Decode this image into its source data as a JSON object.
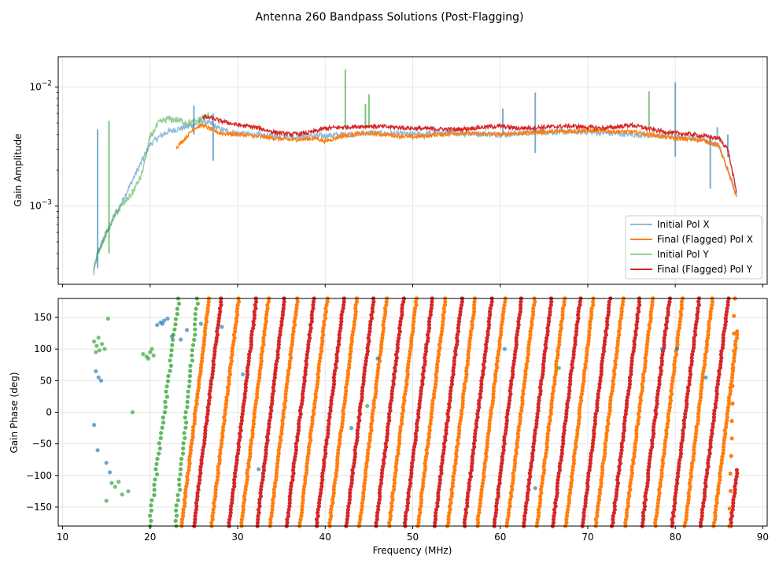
{
  "figure": {
    "title": "Antenna 260 Bandpass Solutions (Post-Flagging)"
  },
  "chart_data": [
    {
      "type": "line",
      "ylabel": "Gain Amplitude",
      "xlabel": "",
      "xlim": [
        9.5,
        90.5
      ],
      "ylim": [
        0.00022,
        0.018
      ],
      "yscale": "log",
      "yticks": [
        {
          "value": 0.001,
          "base": "10",
          "exp": "−3"
        },
        {
          "value": 0.01,
          "base": "10",
          "exp": "−2"
        }
      ],
      "xticks": [
        10,
        20,
        30,
        40,
        50,
        60,
        70,
        80,
        90
      ],
      "grid": true,
      "legend_position": "lower-right",
      "series": [
        {
          "name": "Initial Pol X",
          "color": "#1f77b4",
          "opacity": 0.5,
          "x": [
            13.5,
            14.0,
            15.5,
            20.0,
            21.0,
            22.0,
            23.0,
            24.0,
            25.0,
            26.0,
            27.0,
            28.0,
            30.0,
            33.0,
            36.0,
            40.0,
            45.0,
            50.0,
            55.0,
            60.0,
            65.0,
            70.0,
            75.0,
            80.0,
            83.0,
            85.0,
            87.0
          ],
          "y": [
            0.00028,
            0.0004,
            0.0007,
            0.0033,
            0.0038,
            0.0042,
            0.0044,
            0.0046,
            0.0048,
            0.0052,
            0.0049,
            0.0044,
            0.0041,
            0.0039,
            0.0038,
            0.0039,
            0.0041,
            0.004,
            0.0041,
            0.004,
            0.0042,
            0.0042,
            0.004,
            0.0038,
            0.0037,
            0.0032,
            0.00125
          ]
        },
        {
          "name": "Final (Flagged) Pol X",
          "color": "#ff7f0e",
          "opacity": 1,
          "x": [
            23.0,
            24.0,
            25.0,
            26.0,
            27.0,
            28.0,
            30.0,
            33.0,
            36.0,
            39.0,
            40.0,
            42.0,
            45.0,
            50.0,
            55.0,
            60.0,
            65.0,
            70.0,
            75.0,
            80.0,
            83.0,
            85.0,
            87.0
          ],
          "y": [
            0.0031,
            0.0037,
            0.0045,
            0.0048,
            0.0044,
            0.0041,
            0.004,
            0.0038,
            0.0036,
            0.0037,
            0.0035,
            0.0039,
            0.0041,
            0.0038,
            0.0041,
            0.004,
            0.0042,
            0.0043,
            0.0042,
            0.0037,
            0.0036,
            0.0032,
            0.0012
          ]
        },
        {
          "name": "Initial Pol Y",
          "color": "#2ca02c",
          "opacity": 0.5,
          "x": [
            13.5,
            14.0,
            15.0,
            16.0,
            18.0,
            19.0,
            20.0,
            21.0,
            22.0,
            23.0,
            24.0,
            25.0,
            26.0,
            27.0
          ],
          "y": [
            0.00027,
            0.0004,
            0.0006,
            0.00085,
            0.0013,
            0.0018,
            0.0038,
            0.005,
            0.0054,
            0.0053,
            0.0051,
            0.005,
            0.0056,
            0.0058
          ]
        },
        {
          "name": "Final (Flagged) Pol Y",
          "color": "#d62728",
          "opacity": 1,
          "x": [
            26.0,
            27.0,
            28.0,
            30.0,
            32.0,
            34.0,
            36.0,
            38.0,
            40.0,
            42.0,
            45.0,
            48.0,
            50.0,
            55.0,
            58.0,
            60.0,
            62.0,
            65.0,
            68.0,
            70.0,
            72.0,
            75.0,
            78.0,
            80.0,
            82.0,
            85.0,
            86.0,
            87.0
          ],
          "y": [
            0.0056,
            0.0055,
            0.0052,
            0.0048,
            0.0046,
            0.0042,
            0.004,
            0.0041,
            0.0045,
            0.0046,
            0.0047,
            0.0046,
            0.0045,
            0.0044,
            0.0046,
            0.0047,
            0.0045,
            0.0046,
            0.0047,
            0.0046,
            0.0045,
            0.0048,
            0.0043,
            0.0041,
            0.004,
            0.0037,
            0.003,
            0.0013
          ]
        }
      ],
      "spikes": [
        {
          "x": 14.0,
          "color": "#1f77b4",
          "top": 0.0044,
          "bottom": 0.0003
        },
        {
          "x": 15.3,
          "color": "#2ca02c",
          "top": 0.0052,
          "bottom": 0.0004
        },
        {
          "x": 25.0,
          "color": "#1f77b4",
          "top": 0.007,
          "bottom": 0.004
        },
        {
          "x": 27.2,
          "color": "#1f77b4",
          "top": 0.006,
          "bottom": 0.0024
        },
        {
          "x": 42.3,
          "color": "#2ca02c",
          "top": 0.014,
          "bottom": 0.0045
        },
        {
          "x": 44.6,
          "color": "#2ca02c",
          "top": 0.0072,
          "bottom": 0.0045
        },
        {
          "x": 45.0,
          "color": "#2ca02c",
          "top": 0.0087,
          "bottom": 0.0045
        },
        {
          "x": 60.3,
          "color": "#1f77b4",
          "top": 0.0066,
          "bottom": 0.004
        },
        {
          "x": 64.0,
          "color": "#1f77b4",
          "top": 0.009,
          "bottom": 0.0028
        },
        {
          "x": 77.0,
          "color": "#2ca02c",
          "top": 0.0092,
          "bottom": 0.0045
        },
        {
          "x": 80.0,
          "color": "#1f77b4",
          "top": 0.011,
          "bottom": 0.0026
        },
        {
          "x": 84.0,
          "color": "#1f77b4",
          "top": 0.004,
          "bottom": 0.0014
        },
        {
          "x": 84.8,
          "color": "#1f77b4",
          "top": 0.0046,
          "bottom": 0.0036
        },
        {
          "x": 86.0,
          "color": "#1f77b4",
          "top": 0.004,
          "bottom": 0.0026
        }
      ]
    },
    {
      "type": "scatter",
      "xlabel": "Frequency (MHz)",
      "ylabel": "Gain Phase (deg)",
      "xlim": [
        9.5,
        90.5
      ],
      "ylim": [
        -180,
        180
      ],
      "yticks": [
        -150,
        -100,
        -50,
        0,
        50,
        100,
        150
      ],
      "xticks": [
        10,
        20,
        30,
        40,
        50,
        60,
        70,
        80,
        90
      ],
      "grid": true,
      "phase_wrap_start_mhz": 26.0,
      "phase_wrap_period_mhz": 3.38,
      "phase_lines_x": {
        "color": "#ff7f0e",
        "x_at_minus_180": [
          23.6,
          27.0,
          30.4,
          33.7,
          37.1,
          40.5,
          43.9,
          47.3,
          50.6,
          54.0,
          57.4,
          60.8,
          64.2,
          67.5,
          70.9,
          74.3,
          77.7,
          81.1,
          84.4
        ]
      },
      "phase_lines_y": {
        "color": "#d62728",
        "x_at_minus_180": [
          25.0,
          29.0,
          32.2,
          35.6,
          39.0,
          42.4,
          45.8,
          49.1,
          52.5,
          55.9,
          59.3,
          62.7,
          66.0,
          69.4,
          72.8,
          76.2,
          79.6,
          82.9,
          86.3
        ]
      },
      "initial_points": [
        {
          "color": "#2ca02c",
          "x": [
            13.6,
            13.9,
            14.2,
            14.5,
            14.8,
            13.8,
            14.1,
            19.2,
            19.6,
            20.0,
            20.4,
            19.8,
            20.2,
            15.2,
            15.6,
            16.0,
            16.4,
            17.5,
            15.0,
            16.8,
            18.0,
            44.8,
            66.7
          ],
          "y": [
            112,
            105,
            98,
            108,
            100,
            95,
            118,
            92,
            88,
            95,
            90,
            85,
            100,
            148,
            -112,
            -118,
            -110,
            -125,
            -140,
            -130,
            0,
            10,
            70
          ]
        },
        {
          "color": "#1f77b4",
          "x": [
            13.8,
            14.1,
            14.4,
            14.0,
            20.8,
            21.2,
            21.6,
            22.0,
            21.4,
            15.0,
            15.4,
            13.6,
            22.5,
            23.5,
            24.2,
            25.8,
            28.2,
            30.6,
            32.4,
            43.0,
            46.0,
            60.5,
            64.0,
            78.5,
            80.2,
            83.5
          ],
          "y": [
            65,
            55,
            50,
            -60,
            138,
            142,
            145,
            148,
            140,
            -80,
            -95,
            -20,
            120,
            115,
            130,
            140,
            135,
            60,
            -90,
            -25,
            85,
            100,
            -120,
            100,
            100,
            55
          ]
        }
      ],
      "green_steep_lines": [
        {
          "x_at_minus_180": 19.9,
          "x_at_180": 23.3
        },
        {
          "x_at_minus_180": 22.9,
          "x_at_180": 25.4
        }
      ]
    }
  ]
}
